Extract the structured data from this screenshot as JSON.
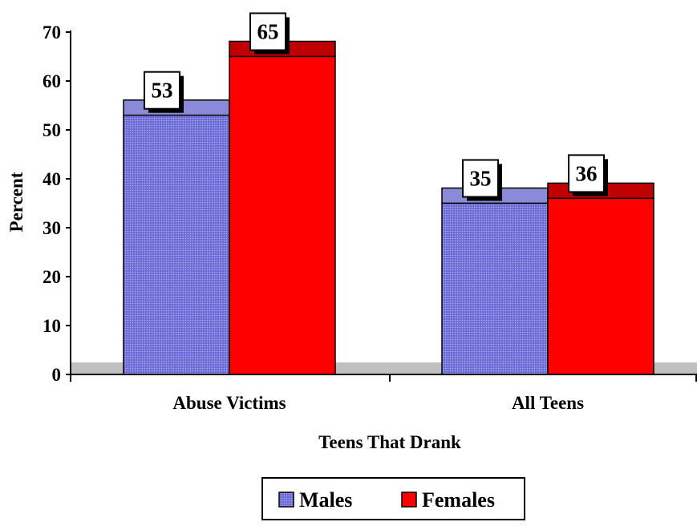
{
  "chart_data": {
    "type": "bar",
    "title": "",
    "xlabel": "Teens That Drank",
    "ylabel": "Percent",
    "ylim": [
      0,
      70
    ],
    "yticks": [
      0,
      10,
      20,
      30,
      40,
      50,
      60,
      70
    ],
    "categories": [
      "Abuse Victims",
      "All Teens"
    ],
    "series": [
      {
        "name": "Males",
        "values": [
          53,
          35
        ],
        "color": "#7b7be0",
        "top_color": "#8a8ad8"
      },
      {
        "name": "Females",
        "values": [
          65,
          36
        ],
        "color": "#ff0000",
        "top_color": "#c00000"
      }
    ],
    "data_labels": [
      "53",
      "65",
      "35",
      "36"
    ],
    "legend_position": "bottom",
    "grid": false,
    "floor_color": "#c0c0c0"
  }
}
